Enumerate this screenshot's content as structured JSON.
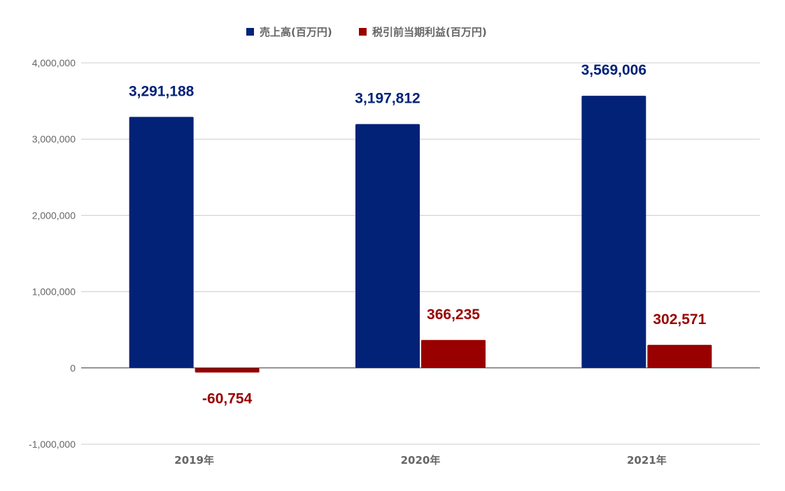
{
  "chart_data": {
    "type": "bar",
    "categories": [
      "2019年",
      "2020年",
      "2021年"
    ],
    "series": [
      {
        "name": "売上高(百万円)",
        "values": [
          3291188,
          3197812,
          3569006
        ],
        "color": "#022278",
        "label_color": "#022278"
      },
      {
        "name": "税引前当期利益(百万円)",
        "values": [
          -60754,
          366235,
          302571
        ],
        "color": "#990000",
        "label_color": "#990000"
      }
    ],
    "data_labels": [
      [
        "3,291,188",
        "3,197,812",
        "3,569,006"
      ],
      [
        "-60,754",
        "366,235",
        "302,571"
      ]
    ],
    "y_ticks": [
      4000000,
      3000000,
      2000000,
      1000000,
      0,
      -1000000
    ],
    "y_tick_labels": [
      "4,000,000",
      "3,000,000",
      "2,000,000",
      "1,000,000",
      "0",
      "-1,000,000"
    ],
    "ylim": [
      -1000000,
      4000000
    ],
    "title": "",
    "xlabel": "",
    "ylabel": "",
    "grid": true,
    "legend_position": "top"
  }
}
